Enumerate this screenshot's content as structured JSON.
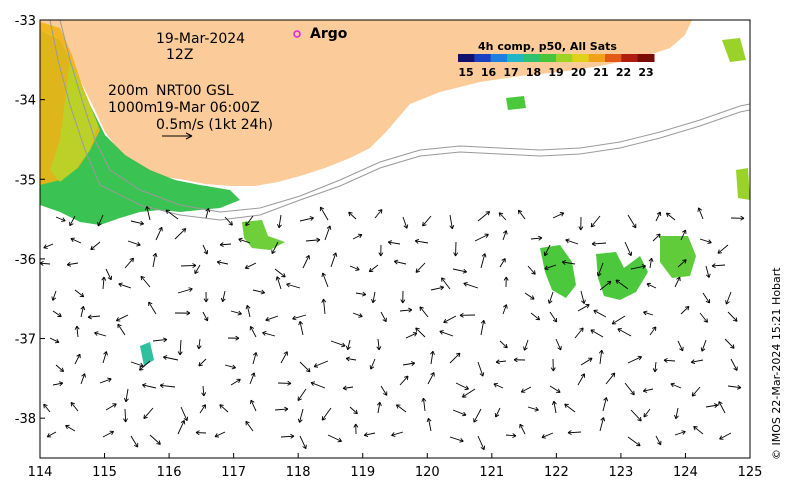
{
  "map": {
    "lon_range": [
      114,
      125
    ],
    "lat_range": [
      -38.5,
      -33
    ],
    "x_ticks": [
      "114",
      "115",
      "116",
      "117",
      "118",
      "119",
      "120",
      "121",
      "122",
      "123",
      "124",
      "125"
    ],
    "y_ticks": [
      "-33",
      "-34",
      "-35",
      "-36",
      "-37",
      "-38"
    ],
    "land_color": "#FBCB99"
  },
  "annotations": {
    "date": "19-Mar-2024",
    "hour": "12Z",
    "depth_200": "200m",
    "depth_1000": "1000m",
    "product": "NRT00 GSL",
    "product_time": "19-Mar 06:00Z",
    "scale": "0.5m/s (1kt 24h)",
    "argo_label": "Argo"
  },
  "colorbar": {
    "title": "4h comp, p50, All Sats",
    "ticks": [
      "15",
      "16",
      "17",
      "18",
      "19",
      "20",
      "21",
      "22",
      "23"
    ],
    "colors": [
      "#12126e",
      "#1a3fbf",
      "#1f7fe0",
      "#21b5c8",
      "#2ec26e",
      "#48c43a",
      "#9ed324",
      "#e0d21a",
      "#f2a11b",
      "#e25a15",
      "#b01c10",
      "#7a0c06"
    ]
  },
  "credit": "© IMOS 22-Mar-2024 15:21 Hobart"
}
